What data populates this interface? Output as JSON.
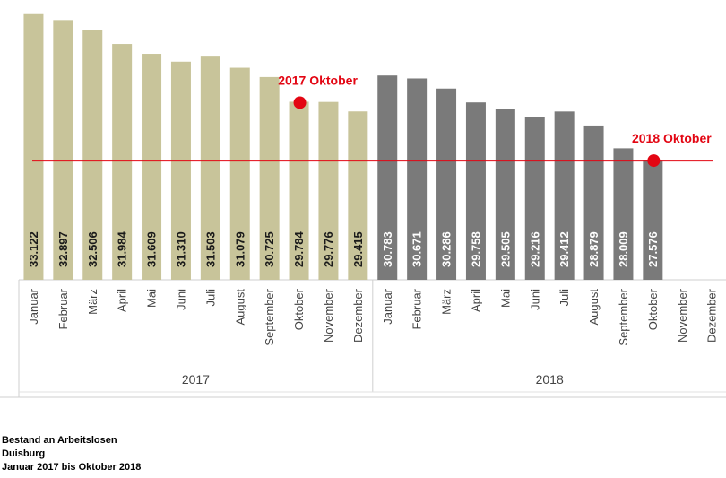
{
  "chart_data": {
    "type": "bar",
    "groups": [
      {
        "name": "2017",
        "color": "#c8c49a",
        "months": [
          "Januar",
          "Februar",
          "März",
          "April",
          "Mai",
          "Juni",
          "Juli",
          "August",
          "September",
          "Oktober",
          "November",
          "Dezember"
        ],
        "values": [
          33122,
          32897,
          32506,
          31984,
          31609,
          31310,
          31503,
          31079,
          30725,
          29784,
          29776,
          29415
        ],
        "labels": [
          "33.122",
          "32.897",
          "32.506",
          "31.984",
          "31.609",
          "31.310",
          "31.503",
          "31.079",
          "30.725",
          "29.784",
          "29.776",
          "29.415"
        ]
      },
      {
        "name": "2018",
        "color": "#7a7a7a",
        "months": [
          "Januar",
          "Februar",
          "März",
          "April",
          "Mai",
          "Juni",
          "Juli",
          "August",
          "September",
          "Oktober",
          "November",
          "Dezember"
        ],
        "values": [
          30783,
          30671,
          30286,
          29758,
          29505,
          29216,
          29412,
          28879,
          28009,
          27576,
          null,
          null
        ],
        "labels": [
          "30.783",
          "30.671",
          "30.286",
          "29.758",
          "29.505",
          "29.216",
          "29.412",
          "28.879",
          "28.009",
          "27.576",
          "",
          ""
        ]
      }
    ],
    "reference_line": {
      "value": 27576,
      "color": "#e30613"
    },
    "markers": [
      {
        "label": "2017 Oktober",
        "group": 0,
        "month_index": 9,
        "value": 29784,
        "color": "#e30613"
      },
      {
        "label": "2018 Oktober",
        "group": 1,
        "month_index": 9,
        "value": 27576,
        "color": "#e30613"
      }
    ],
    "ylim": [
      23000,
      33250
    ],
    "grid": false,
    "legend": "none"
  },
  "caption": {
    "line1": "Bestand an Arbeitslosen",
    "line2": "Duisburg",
    "line3": "Januar 2017 bis Oktober 2018"
  }
}
